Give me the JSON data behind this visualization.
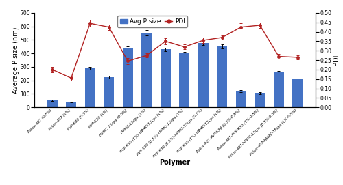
{
  "bar_values": [
    50,
    38,
    290,
    225,
    435,
    555,
    430,
    400,
    475,
    450,
    120,
    105,
    258,
    208
  ],
  "bar_errors": [
    5,
    4,
    12,
    10,
    15,
    20,
    12,
    10,
    12,
    15,
    8,
    6,
    10,
    8
  ],
  "pdi_values": [
    0.2,
    0.155,
    0.445,
    0.425,
    0.245,
    0.275,
    0.35,
    0.32,
    0.355,
    0.37,
    0.425,
    0.435,
    0.27,
    0.265
  ],
  "pdi_errors": [
    0.015,
    0.012,
    0.018,
    0.015,
    0.015,
    0.012,
    0.015,
    0.012,
    0.015,
    0.012,
    0.02,
    0.015,
    0.012,
    0.01
  ],
  "bar_color": "#4472C4",
  "line_color": "#B22222",
  "bar_label": "Avg P size",
  "line_label": "PDI",
  "ylabel_left": "Average P size (nm)",
  "ylabel_right": "PDI",
  "xlabel": "Polymer",
  "ylim_left": [
    0,
    700
  ],
  "ylim_right": [
    0.0,
    0.5
  ],
  "yticks_left": [
    0,
    100,
    200,
    300,
    400,
    500,
    600,
    700
  ],
  "yticks_right": [
    0.0,
    0.05,
    0.1,
    0.15,
    0.2,
    0.25,
    0.3,
    0.35,
    0.4,
    0.45,
    0.5
  ],
  "tick_label_fontsize": 5.5,
  "axis_label_fontsize": 7,
  "legend_fontsize": 6.5,
  "x_labels": [
    "Polox-407 (0.5%)",
    "Polox-407 (1%)",
    "PVP-K30 (0.5%)",
    "PVP-K30 (1%)",
    "HPMC-15cps (0.5%)",
    "HPMC-15cps (1%)",
    "PVP-K30 (1%)-HPMC-15cps (1%)",
    "PVP-K30 (0.5%)-HPMC-15cps (1%)",
    "PVP-K30 (0.5%)-HPMC-15cps (0.5%)",
    "PVP-K30 (1%)-HPMC-15cps (1%)",
    "Polox-407-PVP-K30 (0.5%-0.5%)",
    "Polox-407-PVP-K30 (1%-0.5%)",
    "Polox-407-HPMC-15cps (0.5%-0.5%)",
    "Polox-407-HPMC-15cps (1%-0.5%)"
  ],
  "figsize": [
    5.0,
    2.71
  ],
  "dpi": 100
}
